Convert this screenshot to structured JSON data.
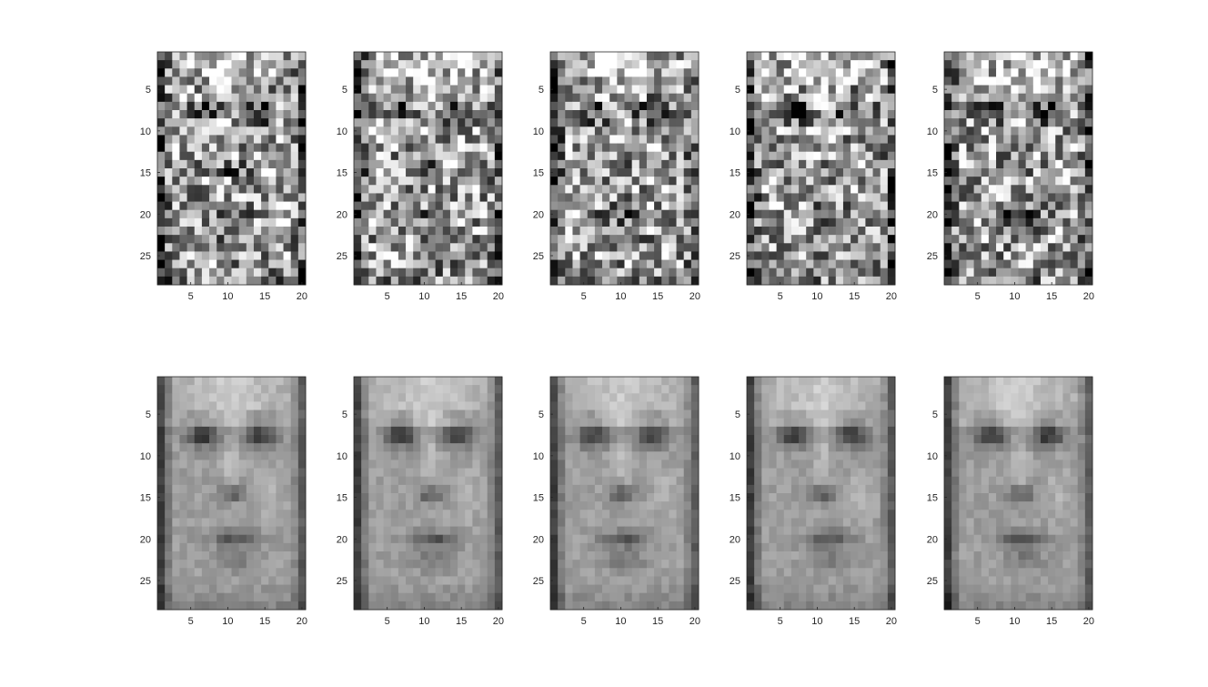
{
  "chart_data": {
    "type": "heatmap",
    "colormap": "gray",
    "rows": 2,
    "cols": 5,
    "image_width": 20,
    "image_height": 28,
    "xlim": [
      0.5,
      20.5
    ],
    "ylim": [
      0.5,
      28.5
    ],
    "y_reversed": true,
    "xticks": [
      5,
      10,
      15,
      20
    ],
    "yticks": [
      5,
      10,
      15,
      20,
      25
    ],
    "grid": false,
    "noise_levels": [
      0.42,
      0.42,
      0.42,
      0.42,
      0.42,
      0.06,
      0.06,
      0.06,
      0.06,
      0.06
    ],
    "panels": [
      {
        "row": 0,
        "col": 0,
        "variant": 0
      },
      {
        "row": 0,
        "col": 1,
        "variant": 1
      },
      {
        "row": 0,
        "col": 2,
        "variant": 2
      },
      {
        "row": 0,
        "col": 3,
        "variant": 3
      },
      {
        "row": 0,
        "col": 4,
        "variant": 4
      },
      {
        "row": 1,
        "col": 0,
        "variant": 0
      },
      {
        "row": 1,
        "col": 1,
        "variant": 1
      },
      {
        "row": 1,
        "col": 2,
        "variant": 2
      },
      {
        "row": 1,
        "col": 3,
        "variant": 3
      },
      {
        "row": 1,
        "col": 4,
        "variant": 4
      }
    ]
  }
}
